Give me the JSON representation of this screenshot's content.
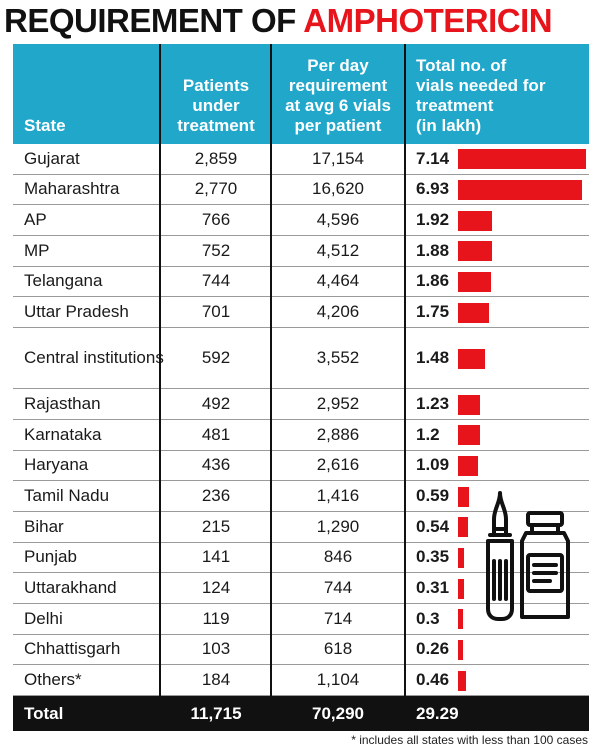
{
  "title": {
    "part1": "REQUIREMENT OF ",
    "part2": "AMPHOTERICIN"
  },
  "headers": {
    "state": "State",
    "patients": [
      "Patients",
      "under",
      "treatment"
    ],
    "per_day": [
      "Per day",
      "requirement",
      "at avg 6 vials",
      "per patient"
    ],
    "vials": [
      "Total no. of",
      "vials needed for",
      "treatment",
      "(in lakh)"
    ]
  },
  "chart_data": {
    "type": "table",
    "columns": [
      "State",
      "Patients under treatment",
      "Per day requirement at avg 6 vials per patient",
      "Total no. of vials needed for treatment (in lakh)"
    ],
    "rows": [
      {
        "state": "Gujarat",
        "patients": "2,859",
        "per_day": "17,154",
        "vials": "7.14",
        "vials_value": 7.14
      },
      {
        "state": "Maharashtra",
        "patients": "2,770",
        "per_day": "16,620",
        "vials": "6.93",
        "vials_value": 6.93
      },
      {
        "state": "AP",
        "patients": "766",
        "per_day": "4,596",
        "vials": "1.92",
        "vials_value": 1.92
      },
      {
        "state": "MP",
        "patients": "752",
        "per_day": "4,512",
        "vials": "1.88",
        "vials_value": 1.88
      },
      {
        "state": "Telangana",
        "patients": "744",
        "per_day": "4,464",
        "vials": "1.86",
        "vials_value": 1.86
      },
      {
        "state": "Uttar Pradesh",
        "patients": "701",
        "per_day": "4,206",
        "vials": "1.75",
        "vials_value": 1.75
      },
      {
        "state": "Central institutions",
        "patients": "592",
        "per_day": "3,552",
        "vials": "1.48",
        "vials_value": 1.48
      },
      {
        "state": "Rajasthan",
        "patients": "492",
        "per_day": "2,952",
        "vials": "1.23",
        "vials_value": 1.23
      },
      {
        "state": "Karnataka",
        "patients": "481",
        "per_day": "2,886",
        "vials": "1.2",
        "vials_value": 1.2
      },
      {
        "state": "Haryana",
        "patients": "436",
        "per_day": "2,616",
        "vials": "1.09",
        "vials_value": 1.09
      },
      {
        "state": "Tamil Nadu",
        "patients": "236",
        "per_day": "1,416",
        "vials": "0.59",
        "vials_value": 0.59
      },
      {
        "state": "Bihar",
        "patients": "215",
        "per_day": "1,290",
        "vials": "0.54",
        "vials_value": 0.54
      },
      {
        "state": "Punjab",
        "patients": "141",
        "per_day": "846",
        "vials": "0.35",
        "vials_value": 0.35
      },
      {
        "state": "Uttarakhand",
        "patients": "124",
        "per_day": "744",
        "vials": "0.31",
        "vials_value": 0.31
      },
      {
        "state": "Delhi",
        "patients": "119",
        "per_day": "714",
        "vials": "0.3",
        "vials_value": 0.3
      },
      {
        "state": "Chhattisgarh",
        "patients": "103",
        "per_day": "618",
        "vials": "0.26",
        "vials_value": 0.26
      },
      {
        "state": "Others*",
        "patients": "184",
        "per_day": "1,104",
        "vials": "0.46",
        "vials_value": 0.46
      }
    ],
    "total": {
      "state": "Total",
      "patients": "11,715",
      "per_day": "70,290",
      "vials": "29.29"
    },
    "bar_color": "#e8141b",
    "header_color": "#20a7ca"
  },
  "footnote": "* includes all states with less than 100 cases",
  "icon": "vial-and-ampoule-icon"
}
